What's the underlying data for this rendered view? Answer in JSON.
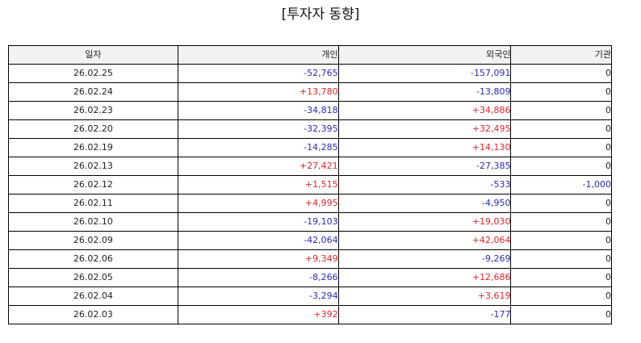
{
  "title": "[투자자 동향]",
  "columns": {
    "date": "일자",
    "individual": "개인",
    "foreign": "외국인",
    "institution": "기관"
  },
  "colors": {
    "positive": "#e0262b",
    "negative": "#2a2ab8",
    "zero": "#222222"
  },
  "rows": [
    {
      "date": "26.02.25",
      "individual": "-52,765",
      "foreign": "-157,091",
      "institution": "0"
    },
    {
      "date": "26.02.24",
      "individual": "+13,780",
      "foreign": "-13,809",
      "institution": "0"
    },
    {
      "date": "26.02.23",
      "individual": "-34,818",
      "foreign": "+34,886",
      "institution": "0"
    },
    {
      "date": "26.02.20",
      "individual": "-32,395",
      "foreign": "+32,495",
      "institution": "0"
    },
    {
      "date": "26.02.19",
      "individual": "-14,285",
      "foreign": "+14,130",
      "institution": "0"
    },
    {
      "date": "26.02.13",
      "individual": "+27,421",
      "foreign": "-27,385",
      "institution": "0"
    },
    {
      "date": "26.02.12",
      "individual": "+1,515",
      "foreign": "-533",
      "institution": "-1,000"
    },
    {
      "date": "26.02.11",
      "individual": "+4,995",
      "foreign": "-4,950",
      "institution": "0"
    },
    {
      "date": "26.02.10",
      "individual": "-19,103",
      "foreign": "+19,030",
      "institution": "0"
    },
    {
      "date": "26.02.09",
      "individual": "-42,064",
      "foreign": "+42,064",
      "institution": "0"
    },
    {
      "date": "26.02.06",
      "individual": "+9,349",
      "foreign": "-9,269",
      "institution": "0"
    },
    {
      "date": "26.02.05",
      "individual": "-8,266",
      "foreign": "+12,686",
      "institution": "0"
    },
    {
      "date": "26.02.04",
      "individual": "-3,294",
      "foreign": "+3,619",
      "institution": "0"
    },
    {
      "date": "26.02.03",
      "individual": "+392",
      "foreign": "-177",
      "institution": "0"
    }
  ]
}
